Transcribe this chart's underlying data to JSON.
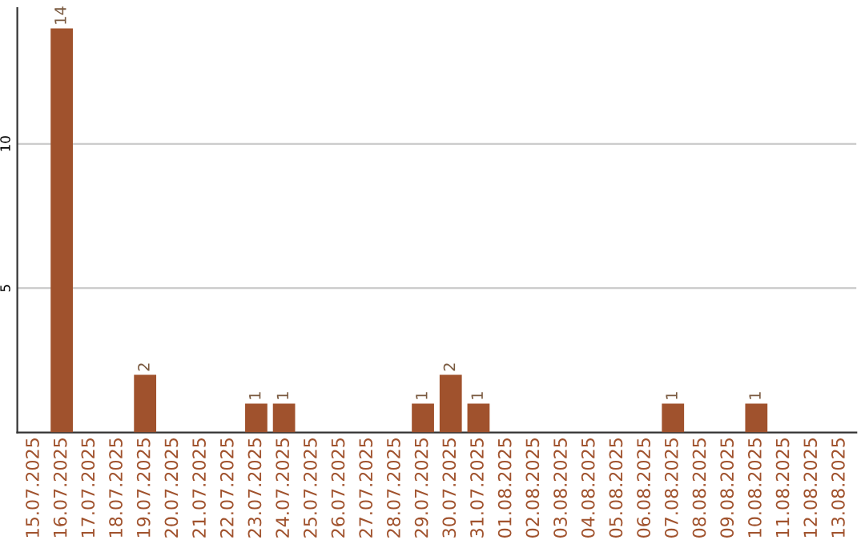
{
  "chart_data": {
    "type": "bar",
    "categories": [
      "15.07.2025",
      "16.07.2025",
      "17.07.2025",
      "18.07.2025",
      "19.07.2025",
      "20.07.2025",
      "21.07.2025",
      "22.07.2025",
      "23.07.2025",
      "24.07.2025",
      "25.07.2025",
      "26.07.2025",
      "27.07.2025",
      "28.07.2025",
      "29.07.2025",
      "30.07.2025",
      "31.07.2025",
      "01.08.2025",
      "02.08.2025",
      "03.08.2025",
      "04.08.2025",
      "05.08.2025",
      "06.08.2025",
      "07.08.2025",
      "08.08.2025",
      "09.08.2025",
      "10.08.2025",
      "11.08.2025",
      "12.08.2025",
      "13.08.2025"
    ],
    "values": [
      0,
      14,
      0,
      0,
      2,
      0,
      0,
      0,
      1,
      1,
      0,
      0,
      0,
      0,
      1,
      2,
      1,
      0,
      0,
      0,
      0,
      0,
      0,
      1,
      0,
      0,
      1,
      0,
      0,
      0
    ],
    "value_labels": [
      null,
      "14",
      null,
      null,
      "2",
      null,
      null,
      null,
      "1",
      "1",
      null,
      null,
      null,
      null,
      "1",
      "2",
      "1",
      null,
      null,
      null,
      null,
      null,
      null,
      "1",
      null,
      null,
      "1",
      null,
      null,
      null
    ],
    "color": "#a0522d",
    "ylim": [
      0,
      14.7
    ],
    "yticks": [
      5,
      10
    ],
    "grid": "y"
  }
}
